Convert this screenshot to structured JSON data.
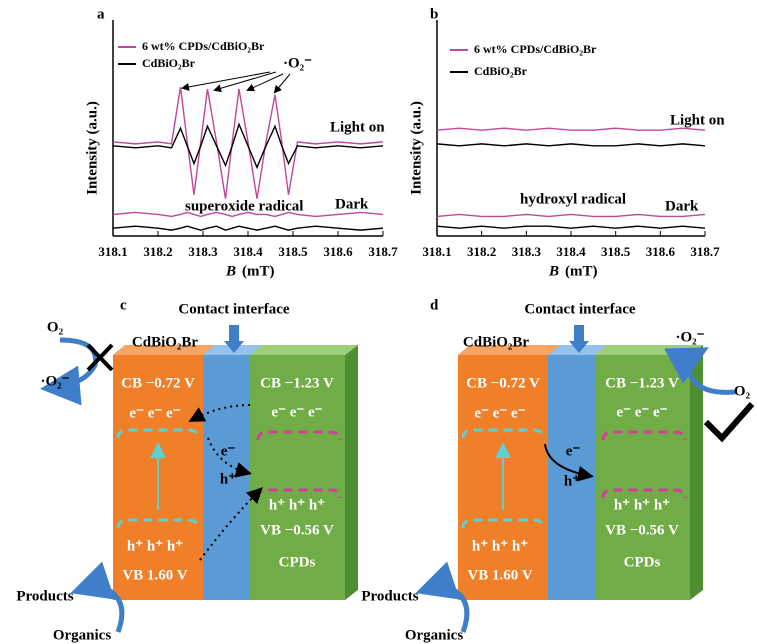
{
  "chart_data": [
    {
      "type": "line",
      "panel": "a",
      "y_label": "Intensity (a.u.)",
      "x_label_symbol": "B",
      "x_label_unit": "(mT)",
      "x": [
        318.1,
        318.15,
        318.2,
        318.23,
        318.25,
        318.265,
        318.28,
        318.295,
        318.31,
        318.33,
        318.35,
        318.365,
        318.38,
        318.4,
        318.42,
        318.44,
        318.46,
        318.475,
        318.49,
        318.51,
        318.55,
        318.6,
        318.65,
        318.7
      ],
      "xlim": [
        318.1,
        318.7
      ],
      "xticks": [
        318.1,
        318.2,
        318.3,
        318.4,
        318.5,
        318.6,
        318.7
      ],
      "ylim": [
        0,
        100
      ],
      "series": [
        {
          "name": "6 wt% CPDs/CdBiO₂Br",
          "color": "#c0479a",
          "values": [
            48,
            47,
            48,
            47,
            76,
            48,
            21,
            48,
            75,
            48,
            19,
            48,
            75,
            48,
            19,
            48,
            72,
            48,
            21,
            48,
            47,
            48,
            47,
            48
          ]
        },
        {
          "name": "CdBiO₂Br",
          "color": "#000000",
          "values": [
            46,
            45,
            46,
            45,
            55,
            46,
            37,
            46,
            56,
            46,
            36,
            46,
            57,
            46,
            35,
            46,
            56,
            46,
            37,
            46,
            45,
            46,
            45,
            46
          ]
        },
        {
          "color": "#c0479a",
          "values": [
            11,
            12,
            11,
            10,
            11,
            12,
            11,
            10,
            11,
            12,
            11,
            10,
            11,
            12,
            11,
            11,
            10,
            11,
            12,
            11,
            10,
            11,
            12,
            11
          ]
        },
        {
          "color": "#000000",
          "values": [
            4,
            5,
            4,
            3,
            4,
            5,
            4,
            3,
            4,
            5,
            3,
            4,
            5,
            4,
            3,
            4,
            5,
            4,
            3,
            4,
            5,
            4,
            3,
            4
          ]
        }
      ],
      "annotations": [
        "·O₂⁻",
        "Light on",
        "superoxide radical",
        "Dark"
      ]
    },
    {
      "type": "line",
      "panel": "b",
      "y_label": "Intensity (a.u.)",
      "x_label_symbol": "B",
      "x_label_unit": "(mT)",
      "x": [
        318.1,
        318.15,
        318.2,
        318.25,
        318.3,
        318.35,
        318.4,
        318.45,
        318.5,
        318.55,
        318.6,
        318.65,
        318.7
      ],
      "xlim": [
        318.1,
        318.7
      ],
      "xticks": [
        318.1,
        318.2,
        318.3,
        318.4,
        318.5,
        318.6,
        318.7
      ],
      "ylim": [
        0,
        100
      ],
      "series": [
        {
          "name": "6 wt% CPDs/CdBiO₂Br",
          "color": "#c0479a",
          "values": [
            54,
            55,
            54,
            55,
            54,
            55,
            54,
            54,
            55,
            54,
            54,
            55,
            54
          ]
        },
        {
          "name": "CdBiO₂Br",
          "color": "#000000",
          "values": [
            47,
            46,
            47,
            46,
            47,
            46,
            47,
            46,
            46,
            47,
            46,
            47,
            46
          ]
        },
        {
          "color": "#c0479a",
          "values": [
            10,
            11,
            10,
            10,
            11,
            10,
            11,
            10,
            10,
            11,
            10,
            10,
            11
          ]
        },
        {
          "color": "#000000",
          "values": [
            5,
            4,
            5,
            4,
            5,
            5,
            4,
            5,
            4,
            5,
            4,
            5,
            4
          ]
        }
      ],
      "annotations": [
        "Light on",
        "hydroxyl radical",
        "Dark"
      ]
    }
  ],
  "diagrams": [
    {
      "label": "c",
      "interface": "Contact interface",
      "material": "CdBiO₂Br",
      "oxygen": "O₂",
      "superoxide": "·O₂⁻",
      "cb_left": "CB −0.72 V",
      "electrons_left": "e⁻ e⁻ e⁻",
      "cb_right": "CB −1.23 V",
      "electrons_right": "e⁻ e⁻ e⁻",
      "electron": "e⁻",
      "hole": "h⁺",
      "holes_right": "h⁺ h⁺ h⁺",
      "vb_right": "VB −0.56 V",
      "holes_left": "h⁺ h⁺ h⁺",
      "vb_left": "VB 1.60 V",
      "cpds": "CPDs",
      "products": "Products",
      "organics": "Organics"
    },
    {
      "label": "d",
      "interface": "Contact interface",
      "material": "CdBiO₂Br",
      "oxygen": "O₂",
      "superoxide": "·O₂⁻",
      "cb_left": "CB −0.72 V",
      "electrons_left": "e⁻ e⁻ e⁻",
      "cb_right": "CB −1.23 V",
      "electrons_right": "e⁻ e⁻ e⁻",
      "electron": "e⁻",
      "hole": "h⁺",
      "holes_right": "h⁺ h⁺ h⁺",
      "vb_right": "VB −0.56 V",
      "holes_left": "h⁺ h⁺ h⁺",
      "vb_left": "VB 1.60 V",
      "cpds": "CPDs",
      "products": "Products",
      "organics": "Organics"
    }
  ]
}
